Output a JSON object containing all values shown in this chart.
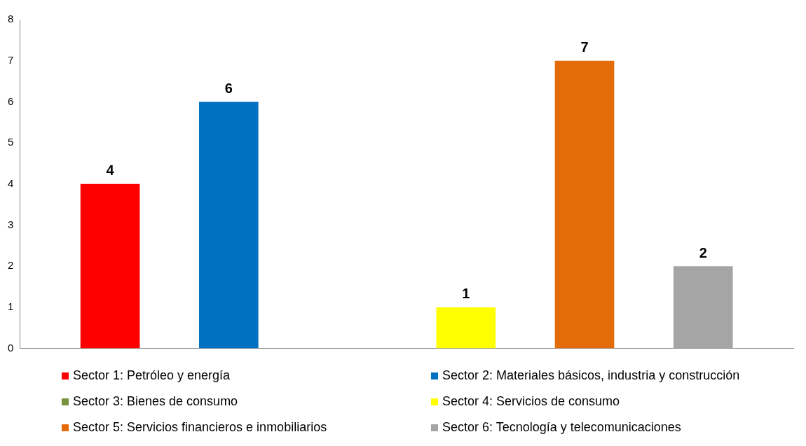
{
  "chart_data": {
    "type": "bar",
    "categories": [
      null
    ],
    "ylim": [
      0,
      8
    ],
    "yticks": [
      0,
      1,
      2,
      3,
      4,
      5,
      6,
      7,
      8
    ],
    "grid": false,
    "legend": "bottom",
    "series": [
      {
        "name": "Sector 1: Petróleo y energía",
        "color": "#ff0000",
        "values": [
          4
        ],
        "value_labels": [
          "4"
        ]
      },
      {
        "name": "Sector 2: Materiales básicos, industria y construcción",
        "color": "#0070c0",
        "values": [
          6
        ],
        "value_labels": [
          "6"
        ]
      },
      {
        "name": "Sector 3: Bienes de consumo",
        "color": "#77933c",
        "values": [
          0
        ],
        "value_labels": [
          null
        ]
      },
      {
        "name": "Sector 4: Servicios de consumo",
        "color": "#ffff00",
        "values": [
          1
        ],
        "value_labels": [
          "1"
        ]
      },
      {
        "name": "Sector 5: Servicios financieros e inmobiliarios",
        "color": "#e36c09",
        "values": [
          7
        ],
        "value_labels": [
          "7"
        ]
      },
      {
        "name": "Sector 6: Tecnología y telecomunicaciones",
        "color": "#a5a5a5",
        "values": [
          2
        ],
        "value_labels": [
          "2"
        ]
      }
    ]
  }
}
